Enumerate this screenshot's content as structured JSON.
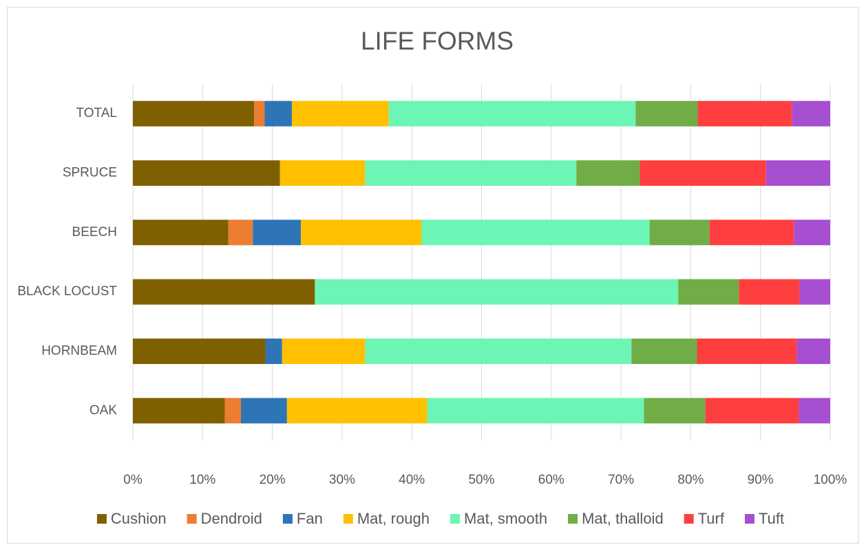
{
  "chart_data": {
    "type": "stacked_bar_horizontal",
    "title": "LIFE FORMS",
    "categories": [
      "TOTAL",
      "SPRUCE",
      "BEECH",
      "BLACK LOCUST",
      "HORNBEAM",
      "OAK"
    ],
    "series": [
      {
        "name": "Cushion",
        "color": "#7f6000",
        "values": [
          17.4,
          21.1,
          13.7,
          26.1,
          19.0,
          13.2
        ]
      },
      {
        "name": "Dendroid",
        "color": "#ed7d31",
        "values": [
          1.5,
          0,
          3.5,
          0,
          0,
          2.3
        ]
      },
      {
        "name": "Fan",
        "color": "#2e75b6",
        "values": [
          3.9,
          0,
          6.9,
          0,
          2.4,
          6.6
        ]
      },
      {
        "name": "Mat, rough",
        "color": "#ffc000",
        "values": [
          13.9,
          12.2,
          17.3,
          0,
          11.9,
          20.1
        ]
      },
      {
        "name": "Mat, smooth",
        "color": "#6cf5b4",
        "values": [
          35.4,
          30.3,
          32.7,
          52.1,
          38.2,
          31.1
        ]
      },
      {
        "name": "Mat, thalloid",
        "color": "#70ad47",
        "values": [
          8.9,
          9.1,
          8.6,
          8.7,
          9.4,
          8.8
        ]
      },
      {
        "name": "Turf",
        "color": "#ff3f3f",
        "values": [
          13.5,
          18.1,
          12.1,
          8.7,
          14.3,
          13.4
        ]
      },
      {
        "name": "Tuft",
        "color": "#a64fd1",
        "values": [
          5.5,
          9.2,
          5.2,
          4.4,
          4.8,
          4.5
        ]
      }
    ],
    "xlim": [
      0,
      100
    ],
    "xticks": [
      {
        "value": 0,
        "label": "0%"
      },
      {
        "value": 10,
        "label": "10%"
      },
      {
        "value": 20,
        "label": "20%"
      },
      {
        "value": 30,
        "label": "30%"
      },
      {
        "value": 40,
        "label": "40%"
      },
      {
        "value": 50,
        "label": "50%"
      },
      {
        "value": 60,
        "label": "60%"
      },
      {
        "value": 70,
        "label": "70%"
      },
      {
        "value": 80,
        "label": "80%"
      },
      {
        "value": 90,
        "label": "90%"
      },
      {
        "value": 100,
        "label": "100%"
      }
    ],
    "grid": true,
    "legend": "bottom"
  }
}
